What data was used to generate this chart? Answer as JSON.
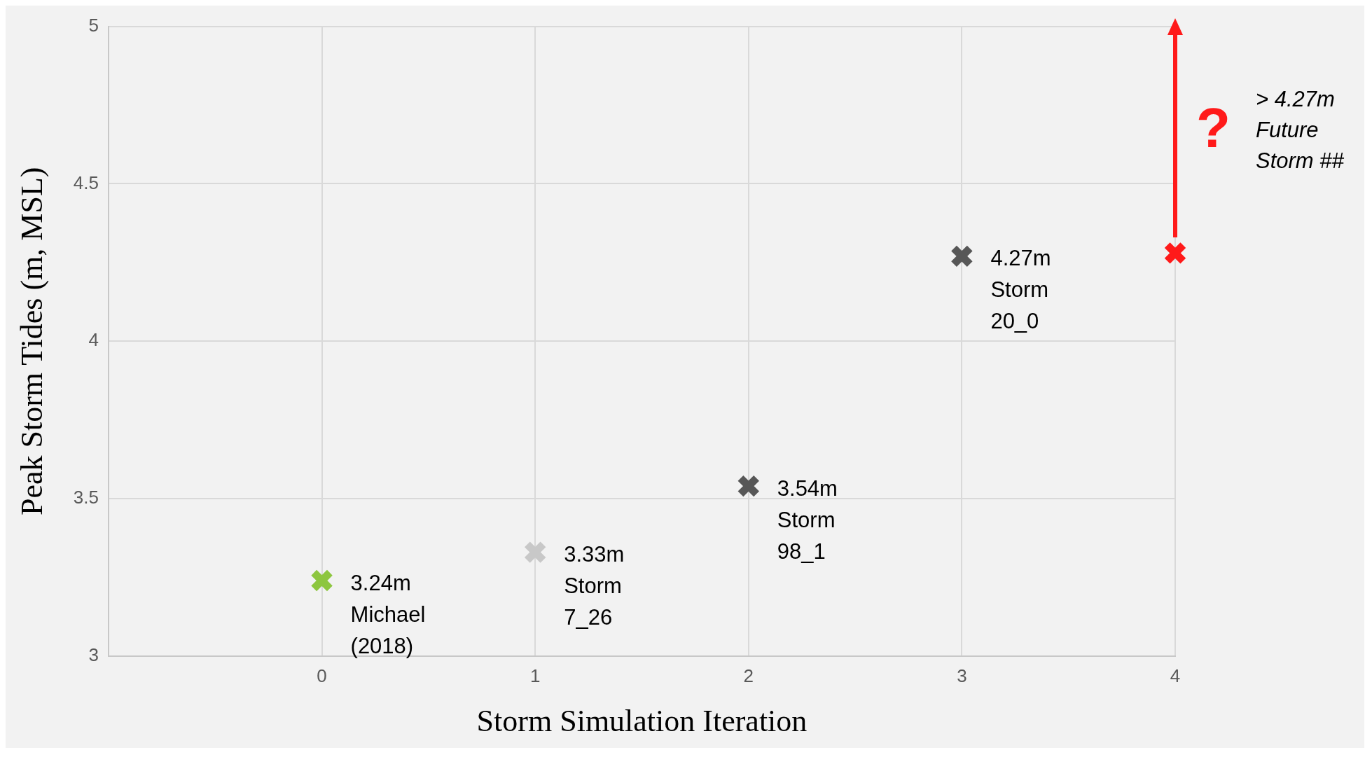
{
  "chart_data": {
    "type": "scatter",
    "xlabel": "Storm Simulation Iteration",
    "ylabel": "Peak Storm Tides (m, MSL)",
    "x": [
      0,
      1,
      2,
      3,
      4
    ],
    "values": [
      3.24,
      3.33,
      3.54,
      4.27,
      4.28
    ],
    "colors": [
      "#8dc63f",
      "#c8c8c8",
      "#575757",
      "#575757",
      "#ff1a1a"
    ],
    "xlim": [
      -1,
      4
    ],
    "xticks": [
      0,
      1,
      2,
      3,
      4
    ],
    "ylim": [
      3,
      5
    ],
    "yticks": [
      3,
      3.5,
      4,
      4.5,
      5
    ],
    "grid": true,
    "legend": false,
    "marker": "cross",
    "annotations": [
      {
        "text": "3.24m\nMichael\n(2018)",
        "x": 0,
        "y": 3.24
      },
      {
        "text": "3.33m\nStorm\n7_26",
        "x": 1,
        "y": 3.33
      },
      {
        "text": "3.54m\nStorm\n98_1",
        "x": 2,
        "y": 3.54
      },
      {
        "text": "4.27m\nStorm\n20_0",
        "x": 3,
        "y": 4.27
      },
      "?",
      "> 4.27m\nFuture\nStorm ##"
    ]
  }
}
